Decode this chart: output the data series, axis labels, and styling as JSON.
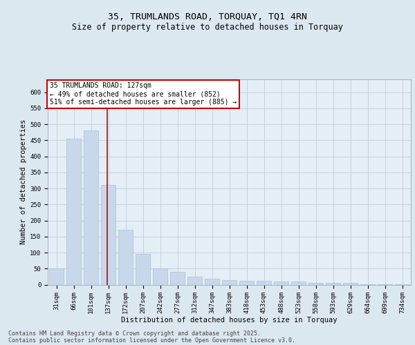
{
  "title1": "35, TRUMLANDS ROAD, TORQUAY, TQ1 4RN",
  "title2": "Size of property relative to detached houses in Torquay",
  "xlabel": "Distribution of detached houses by size in Torquay",
  "ylabel": "Number of detached properties",
  "categories": [
    "31sqm",
    "66sqm",
    "101sqm",
    "137sqm",
    "172sqm",
    "207sqm",
    "242sqm",
    "277sqm",
    "312sqm",
    "347sqm",
    "383sqm",
    "418sqm",
    "453sqm",
    "488sqm",
    "523sqm",
    "558sqm",
    "593sqm",
    "629sqm",
    "664sqm",
    "699sqm",
    "734sqm"
  ],
  "values": [
    50,
    455,
    480,
    310,
    170,
    95,
    50,
    40,
    25,
    18,
    13,
    12,
    12,
    10,
    10,
    5,
    5,
    5,
    1,
    1,
    1
  ],
  "bar_color": "#c8d8ea",
  "bar_edgecolor": "#a8bfd4",
  "annotation_text": "35 TRUMLANDS ROAD: 127sqm\n← 49% of detached houses are smaller (852)\n51% of semi-detached houses are larger (885) →",
  "annotation_box_color": "#ffffff",
  "annotation_box_edgecolor": "#cc0000",
  "vline_color": "#cc0000",
  "grid_color": "#c0ccd8",
  "bg_color": "#dce8f0",
  "plot_bg_color": "#e4eef6",
  "ylim": [
    0,
    640
  ],
  "yticks": [
    0,
    50,
    100,
    150,
    200,
    250,
    300,
    350,
    400,
    450,
    500,
    550,
    600
  ],
  "footer1": "Contains HM Land Registry data © Crown copyright and database right 2025.",
  "footer2": "Contains public sector information licensed under the Open Government Licence v3.0.",
  "title_fontsize": 9.5,
  "subtitle_fontsize": 8.5,
  "axis_label_fontsize": 7.5,
  "tick_fontsize": 6.5,
  "annotation_fontsize": 7,
  "footer_fontsize": 6
}
